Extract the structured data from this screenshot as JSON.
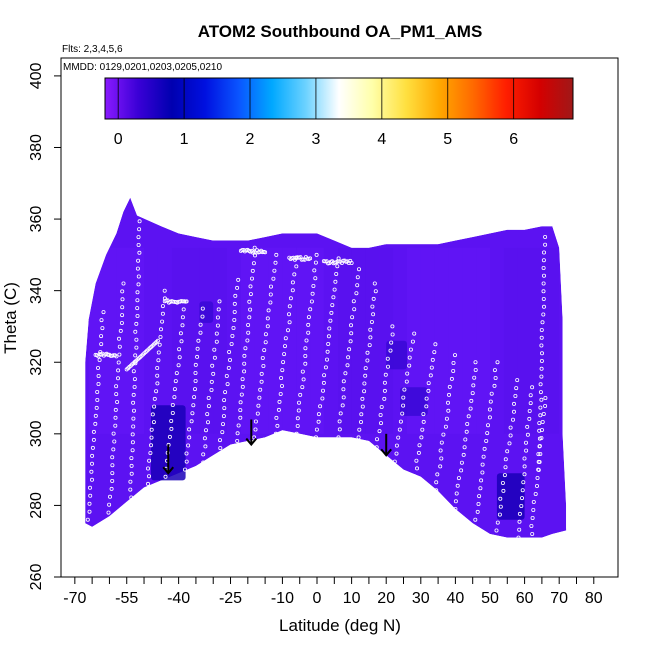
{
  "chart_data": {
    "type": "heatmap",
    "title": "ATOM2 Southbound OA_PM1_AMS",
    "flights_note": "Flts: 2,3,4,5,6",
    "dates_note": "MMDD: 0129,0201,0203,0205,0210",
    "xlabel": "Latitude (deg N)",
    "ylabel": "Theta (C)",
    "xlim": [
      -72,
      85
    ],
    "ylim": [
      260,
      405
    ],
    "x_ticks_labeled": [
      -70,
      -55,
      -40,
      -25,
      -10,
      0,
      10,
      20,
      30,
      40,
      50,
      60,
      70,
      80
    ],
    "x_ticks_minor": [
      -65,
      -60,
      -50,
      -45,
      -35,
      -30,
      -20,
      -15,
      -5,
      5,
      15,
      25,
      35,
      45,
      55,
      65,
      75
    ],
    "y_ticks": [
      260,
      280,
      300,
      320,
      340,
      360,
      380,
      400
    ],
    "colorbar": {
      "min": -0.2,
      "max": 6.9,
      "ticks": [
        0,
        1,
        2,
        3,
        4,
        5,
        6
      ],
      "colors": [
        "#8a1aff",
        "#3a00d6",
        "#0000b0",
        "#0010e0",
        "#0a55ff",
        "#00a8ff",
        "#6cd2ff",
        "#ffffff",
        "#ffffaa",
        "#ffe040",
        "#ffa800",
        "#ff6a00",
        "#ff1e00",
        "#d40000",
        "#a01818"
      ]
    },
    "field_color": "#5c12f2",
    "top_boundary": [
      [
        -66,
        332
      ],
      [
        -64,
        342
      ],
      [
        -61,
        350
      ],
      [
        -58,
        356
      ],
      [
        -56,
        362
      ],
      [
        -54,
        366
      ],
      [
        -52,
        361
      ],
      [
        -45,
        358
      ],
      [
        -40,
        356
      ],
      [
        -35,
        355
      ],
      [
        -30,
        354
      ],
      [
        -25,
        354
      ],
      [
        -20,
        354
      ],
      [
        -15,
        355
      ],
      [
        -10,
        356
      ],
      [
        -5,
        356
      ],
      [
        0,
        356
      ],
      [
        5,
        354
      ],
      [
        10,
        352
      ],
      [
        15,
        352
      ],
      [
        20,
        353
      ],
      [
        25,
        353
      ],
      [
        30,
        353
      ],
      [
        35,
        353
      ],
      [
        40,
        354
      ],
      [
        45,
        355
      ],
      [
        50,
        356
      ],
      [
        55,
        357
      ],
      [
        60,
        357
      ],
      [
        65,
        358
      ],
      [
        68,
        358
      ],
      [
        70,
        352
      ],
      [
        71,
        332
      ],
      [
        71,
        300
      ],
      [
        72,
        280
      ],
      [
        72,
        273
      ]
    ],
    "bottom_boundary": [
      [
        72,
        273
      ],
      [
        68,
        272
      ],
      [
        65,
        271
      ],
      [
        61,
        271
      ],
      [
        55,
        271
      ],
      [
        50,
        272
      ],
      [
        45,
        275
      ],
      [
        40,
        279
      ],
      [
        35,
        284
      ],
      [
        30,
        288
      ],
      [
        25,
        290
      ],
      [
        20,
        294
      ],
      [
        15,
        298
      ],
      [
        10,
        299
      ],
      [
        5,
        299
      ],
      [
        0,
        299
      ],
      [
        -5,
        300
      ],
      [
        -10,
        301
      ],
      [
        -15,
        299
      ],
      [
        -20,
        298
      ],
      [
        -25,
        297
      ],
      [
        -30,
        294
      ],
      [
        -35,
        291
      ],
      [
        -40,
        289
      ],
      [
        -45,
        287
      ],
      [
        -50,
        285
      ],
      [
        -55,
        281
      ],
      [
        -60,
        277
      ],
      [
        -65,
        274
      ],
      [
        -67,
        275
      ],
      [
        -67,
        305
      ],
      [
        -67,
        320
      ],
      [
        -66,
        332
      ]
    ],
    "dark_patches": [
      {
        "lat": [
          -48,
          -38
        ],
        "theta": [
          287,
          308
        ],
        "value": 1.1
      },
      {
        "lat": [
          52,
          60
        ],
        "theta": [
          276,
          289
        ],
        "value": 1.1
      },
      {
        "lat": [
          24,
          32
        ],
        "theta": [
          305,
          313
        ],
        "value": 0.9
      },
      {
        "lat": [
          20,
          26
        ],
        "theta": [
          318,
          326
        ],
        "value": 0.8
      },
      {
        "lat": [
          -34,
          -30
        ],
        "theta": [
          331,
          337
        ],
        "value": 0.7
      }
    ],
    "profiles": [
      {
        "lat0": -54,
        "lat1": -51,
        "theta0": 280,
        "theta1": 366
      },
      {
        "lat0": -49,
        "lat1": -44,
        "theta0": 286,
        "theta1": 340
      },
      {
        "lat0": -44,
        "lat1": -38,
        "theta0": 288,
        "theta1": 337
      },
      {
        "lat0": -38,
        "lat1": -33,
        "theta0": 290,
        "theta1": 335
      },
      {
        "lat0": -33,
        "lat1": -28,
        "theta0": 292,
        "theta1": 337
      },
      {
        "lat0": -28,
        "lat1": -23,
        "theta0": 296,
        "theta1": 343
      },
      {
        "lat0": -23,
        "lat1": -18,
        "theta0": 298,
        "theta1": 352
      },
      {
        "lat0": -18,
        "lat1": -12,
        "theta0": 299,
        "theta1": 350
      },
      {
        "lat0": -12,
        "lat1": -6,
        "theta0": 300,
        "theta1": 349
      },
      {
        "lat0": -6,
        "lat1": 0,
        "theta0": 300,
        "theta1": 350
      },
      {
        "lat0": 0,
        "lat1": 6,
        "theta0": 299,
        "theta1": 349
      },
      {
        "lat0": 6,
        "lat1": 12,
        "theta0": 299,
        "theta1": 346
      },
      {
        "lat0": 12,
        "lat1": 17,
        "theta0": 299,
        "theta1": 342
      },
      {
        "lat0": 17,
        "lat1": 22,
        "theta0": 294,
        "theta1": 330
      },
      {
        "lat0": 22,
        "lat1": 28,
        "theta0": 290,
        "theta1": 328
      },
      {
        "lat0": 28,
        "lat1": 34,
        "theta0": 286,
        "theta1": 325
      },
      {
        "lat0": 34,
        "lat1": 40,
        "theta0": 282,
        "theta1": 322
      },
      {
        "lat0": 40,
        "lat1": 46,
        "theta0": 279,
        "theta1": 320
      },
      {
        "lat0": 46,
        "lat1": 52,
        "theta0": 276,
        "theta1": 320
      },
      {
        "lat0": 52,
        "lat1": 58,
        "theta0": 273,
        "theta1": 315
      },
      {
        "lat0": 58,
        "lat1": 62,
        "theta0": 271,
        "theta1": 313
      },
      {
        "lat0": 62,
        "lat1": 66,
        "theta0": 272,
        "theta1": 310
      },
      {
        "lat0": 64,
        "lat1": 66,
        "theta0": 290,
        "theta1": 355
      },
      {
        "lat0": -66,
        "lat1": -62,
        "theta0": 276,
        "theta1": 334
      },
      {
        "lat0": -60,
        "lat1": -56,
        "theta0": 278,
        "theta1": 342
      }
    ],
    "level_legs": [
      {
        "lat0": -64,
        "lat1": -58,
        "theta": 322
      },
      {
        "lat0": -55,
        "lat1": -46,
        "theta0": 318,
        "theta1": 326
      },
      {
        "lat0": -44,
        "lat1": -38,
        "theta": 337
      },
      {
        "lat0": -22,
        "lat1": -15,
        "theta": 351
      },
      {
        "lat0": -8,
        "lat1": -2,
        "theta": 349
      },
      {
        "lat0": 2,
        "lat1": 10,
        "theta": 348
      }
    ],
    "arrows": [
      {
        "lat": -43,
        "theta_top": 297,
        "theta_bottom": 289
      },
      {
        "lat": -19,
        "theta_top": 304,
        "theta_bottom": 297
      },
      {
        "lat": 20,
        "theta_top": 300,
        "theta_bottom": 294
      }
    ],
    "dot_color": "#ffffff",
    "arrow_color": "#000000"
  }
}
